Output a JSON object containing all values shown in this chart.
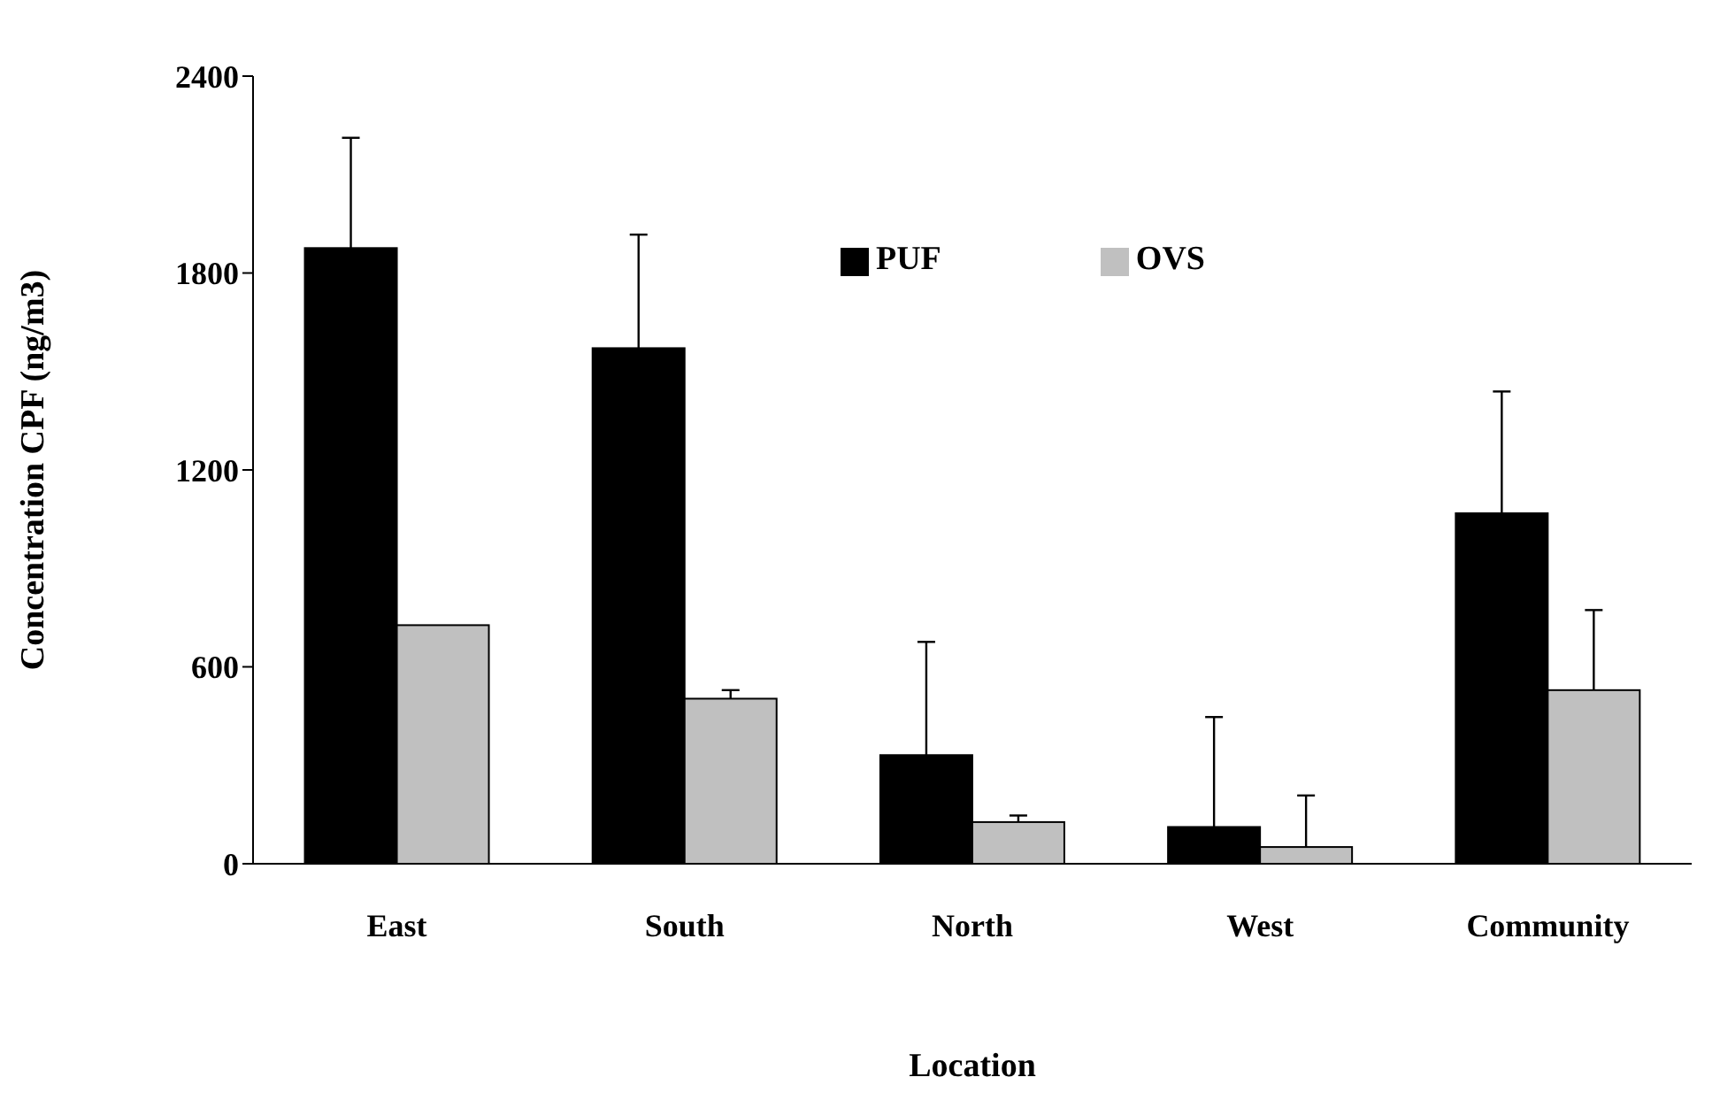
{
  "chart_data": {
    "type": "bar",
    "xlabel": "Location",
    "ylabel": "Concentration CPF (ng/m3)",
    "categories": [
      "East",
      "South",
      "North",
      "West",
      "Community"
    ],
    "series": [
      {
        "name": "PUF",
        "color": "#000000",
        "values": [
          1876,
          1571,
          331,
          112,
          1068
        ],
        "errors": [
          [
            1876,
            2212
          ],
          [
            1571,
            1917
          ],
          [
            331,
            676
          ],
          [
            112,
            447
          ],
          [
            1068,
            1439
          ]
        ]
      },
      {
        "name": "OVS",
        "color": "#c0c0c0",
        "values": [
          727,
          503,
          127,
          51,
          529
        ],
        "errors": [
          null,
          [
            503,
            529
          ],
          [
            127,
            147
          ],
          [
            51,
            208
          ],
          [
            529,
            773
          ]
        ]
      }
    ],
    "ylim": [
      0,
      2400
    ],
    "yticks": [
      0,
      600,
      1200,
      1800,
      2400
    ],
    "grid": false,
    "legend": "top"
  }
}
